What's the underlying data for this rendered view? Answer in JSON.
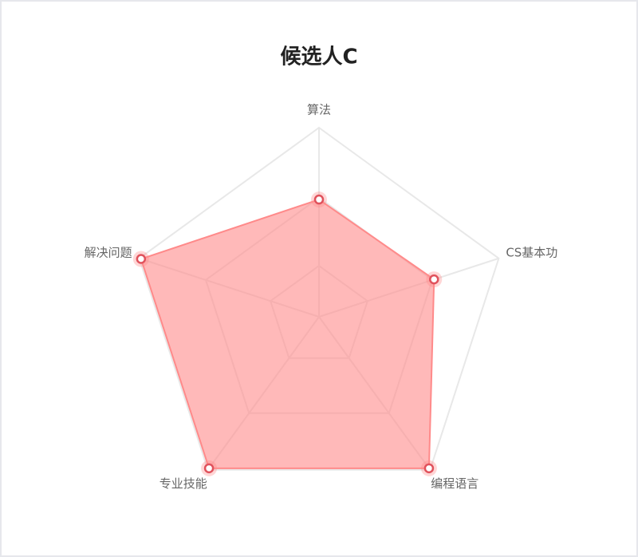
{
  "chart_data": {
    "type": "radar",
    "title": "候选人C",
    "categories": [
      "算法",
      "CS基本功",
      "编程语言",
      "专业技能",
      "解决问题"
    ],
    "series": [
      {
        "name": "候选人C",
        "color": "#ff8a8a",
        "values": [
          62,
          64,
          99,
          99,
          99
        ]
      }
    ],
    "ylim": [
      0,
      100
    ],
    "yticks": [
      27,
      63,
      100
    ],
    "grid": true
  }
}
